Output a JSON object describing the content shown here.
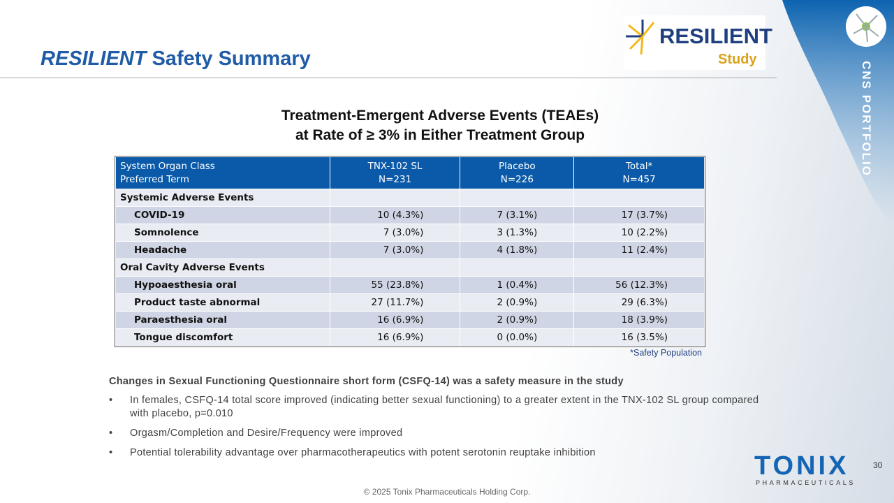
{
  "header": {
    "title": {
      "emphasis": "RESILIENT",
      "text": "Safety Summary"
    },
    "logo": {
      "name": "RESILIENT",
      "sub": "Study"
    },
    "side_label": "CNS PORTFOLIO"
  },
  "table_title": [
    "Treatment-Emergent Adverse Events (TEAEs)",
    "at Rate of ≥ 3% in Either Treatment Group"
  ],
  "table": {
    "header": [
      [
        "System Organ Class",
        "Preferred Term"
      ],
      [
        "TNX-102 SL",
        "N=231"
      ],
      [
        "Placebo",
        "N=226"
      ],
      [
        "Total*",
        "N=457"
      ]
    ],
    "groups": [
      {
        "name": "Systemic Adverse Events",
        "rows": [
          [
            "COVID-19",
            "10 (4.3%)",
            "7 (3.1%)",
            "17 (3.7%)"
          ],
          [
            "Somnolence",
            "7 (3.0%)",
            "3 (1.3%)",
            "10 (2.2%)"
          ],
          [
            "Headache",
            "7 (3.0%)",
            "4 (1.8%)",
            "11 (2.4%)"
          ]
        ]
      },
      {
        "name": "Oral Cavity Adverse Events",
        "rows": [
          [
            "Hypoaesthesia oral",
            "55 (23.8%)",
            "1 (0.4%)",
            "56 (12.3%)"
          ],
          [
            "Product taste abnormal",
            "27 (11.7%)",
            "2 (0.9%)",
            "29 (6.3%)"
          ],
          [
            "Paraesthesia oral",
            "16 (6.9%)",
            "2 (0.9%)",
            "18 (3.9%)"
          ],
          [
            "Tongue discomfort",
            "16 (6.9%)",
            "0 (0.0%)",
            "16 (3.5%)"
          ]
        ]
      }
    ],
    "footnote": "*Safety Population"
  },
  "notes": {
    "heading": "Changes in Sexual Functioning Questionnaire short form (CSFQ-14) was a safety measure in the study",
    "bullets": [
      "In females, CSFQ-14 total score improved (indicating better sexual functioning) to a greater extent in the TNX-102 SL group compared with placebo, p=0.010",
      "Orgasm/Completion and Desire/Frequency were improved",
      "Potential tolerability advantage over pharmacotherapeutics with potent serotonin reuptake inhibition"
    ]
  },
  "footer": {
    "page": "30",
    "copyright": "© 2025 Tonix Pharmaceuticals Holding Corp.",
    "company": {
      "name": "TONIX",
      "sub": "PHARMACEUTICALS"
    }
  }
}
